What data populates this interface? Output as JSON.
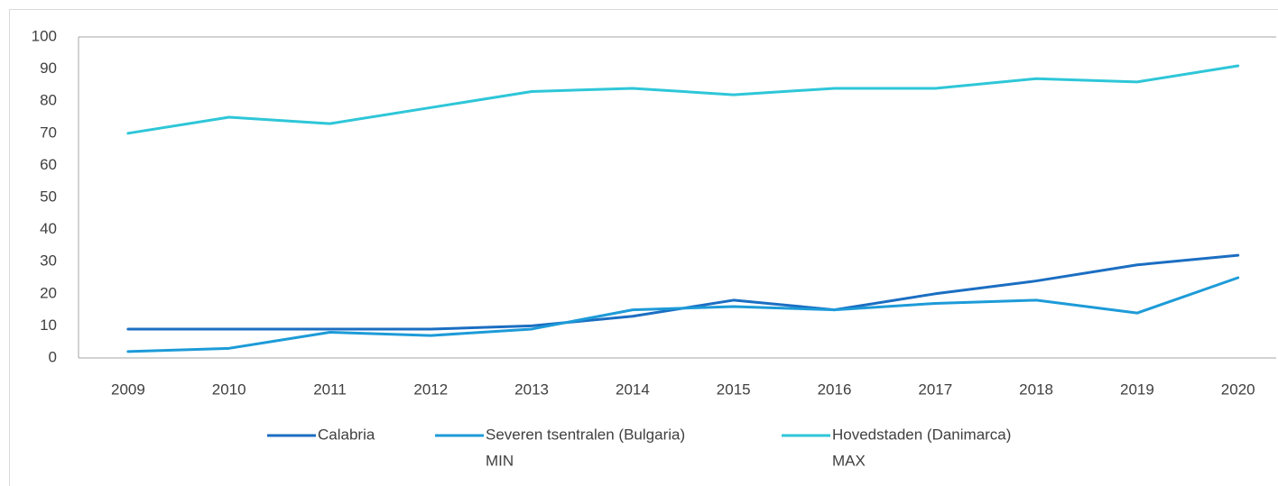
{
  "chart_data": {
    "type": "line",
    "categories": [
      "2009",
      "2010",
      "2011",
      "2012",
      "2013",
      "2014",
      "2015",
      "2016",
      "2017",
      "2018",
      "2019",
      "2020"
    ],
    "series": [
      {
        "name": "Calabria",
        "color": "#1b6ec2",
        "values": [
          9,
          9,
          9,
          9,
          10,
          13,
          18,
          15,
          20,
          24,
          29,
          32
        ]
      },
      {
        "name": "Severen tsentralen (Bulgaria)",
        "note": "MIN",
        "color": "#1d9bd8",
        "values": [
          2,
          3,
          8,
          7,
          9,
          15,
          16,
          15,
          17,
          18,
          14,
          25
        ]
      },
      {
        "name": "Hovedstaden (Danimarca)",
        "note": "MAX",
        "color": "#2ec6d8",
        "values": [
          70,
          75,
          73,
          78,
          83,
          84,
          82,
          84,
          84,
          87,
          86,
          91
        ]
      }
    ],
    "ylim": [
      0,
      100
    ],
    "yticks": [
      0,
      10,
      20,
      30,
      40,
      50,
      60,
      70,
      80,
      90,
      100
    ],
    "legend": "bottom"
  }
}
